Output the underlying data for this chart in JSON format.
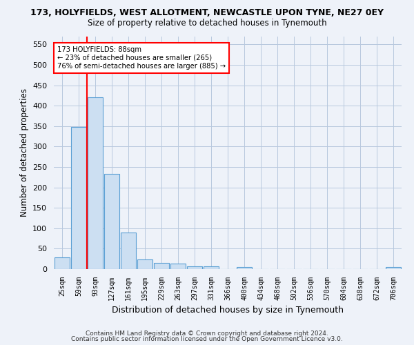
{
  "title": "173, HOLYFIELDS, WEST ALLOTMENT, NEWCASTLE UPON TYNE, NE27 0EY",
  "subtitle": "Size of property relative to detached houses in Tynemouth",
  "xlabel": "Distribution of detached houses by size in Tynemouth",
  "ylabel": "Number of detached properties",
  "bar_color": "#ccdff2",
  "bar_edge_color": "#5a9fd4",
  "bins": [
    "25sqm",
    "59sqm",
    "93sqm",
    "127sqm",
    "161sqm",
    "195sqm",
    "229sqm",
    "263sqm",
    "297sqm",
    "331sqm",
    "366sqm",
    "400sqm",
    "434sqm",
    "468sqm",
    "502sqm",
    "536sqm",
    "570sqm",
    "604sqm",
    "638sqm",
    "672sqm",
    "706sqm"
  ],
  "values": [
    28,
    348,
    420,
    233,
    90,
    23,
    15,
    13,
    6,
    6,
    0,
    5,
    0,
    0,
    0,
    0,
    0,
    0,
    0,
    0,
    5
  ],
  "ylim": [
    0,
    570
  ],
  "yticks": [
    0,
    50,
    100,
    150,
    200,
    250,
    300,
    350,
    400,
    450,
    500,
    550
  ],
  "red_line_bin_index": 2,
  "annotation_line1": "173 HOLYFIELDS: 88sqm",
  "annotation_line2": "← 23% of detached houses are smaller (265)",
  "annotation_line3": "76% of semi-detached houses are larger (885) →",
  "footer1": "Contains HM Land Registry data © Crown copyright and database right 2024.",
  "footer2": "Contains public sector information licensed under the Open Government Licence v3.0.",
  "bg_color": "#eef2f9",
  "plot_bg_color": "#eef2f9"
}
